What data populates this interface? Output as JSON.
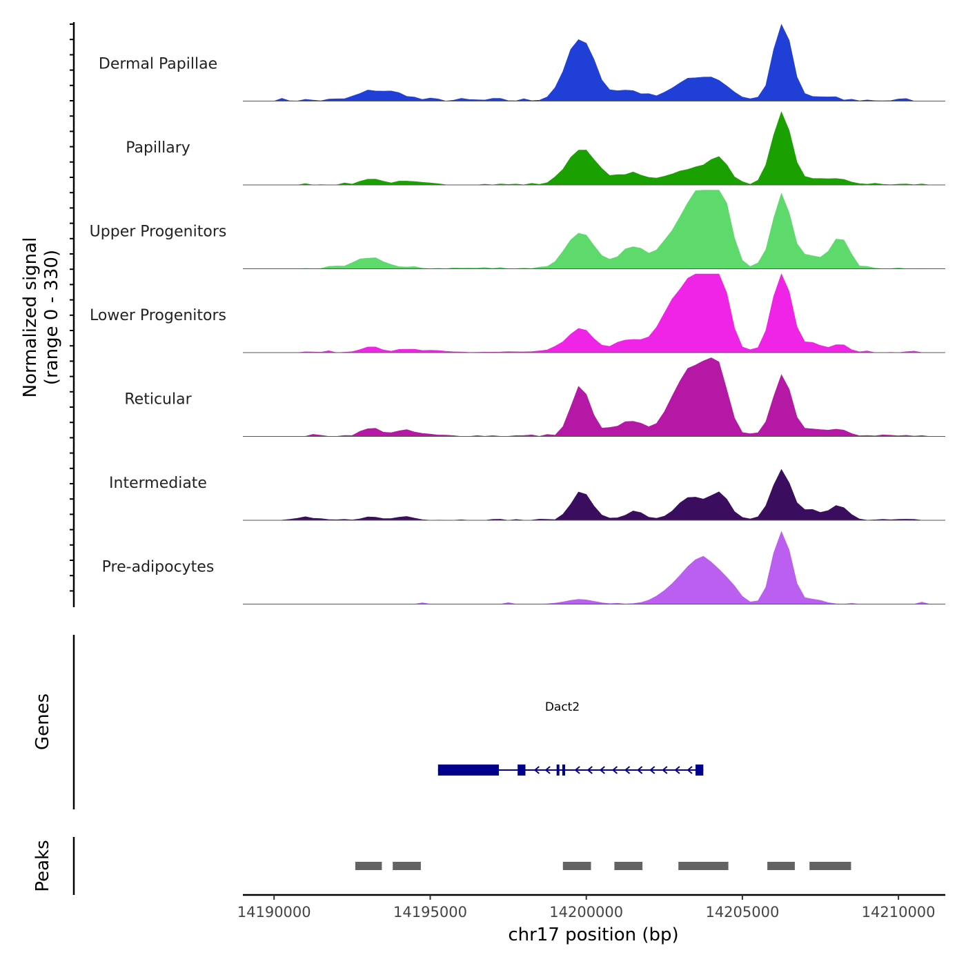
{
  "chart_data": {
    "type": "area",
    "title": "",
    "chromosome": "chr17",
    "xlabel": "chr17 position (bp)",
    "ylabel_line1": "Normalized signal",
    "ylabel_line2": "(range 0 - 330)",
    "xlim": [
      14189000,
      14211500
    ],
    "ylim": [
      0,
      330
    ],
    "x_ticks": [
      14190000,
      14195000,
      14200000,
      14205000,
      14210000
    ],
    "x_tick_labels": [
      "14190000",
      "14195000",
      "14200000",
      "14205000",
      "14210000"
    ],
    "bin_start": 14189000,
    "bin_step": 250,
    "tracks": [
      {
        "name": "Dermal Papillae",
        "color": "#1f3fd6",
        "range": [
          14190000,
          14210500
        ],
        "peaks": [
          [
            14193100,
            35,
            3
          ],
          [
            14193900,
            25,
            3
          ],
          [
            14199800,
            240,
            3
          ],
          [
            14200200,
            20,
            3
          ],
          [
            14201100,
            25,
            2
          ],
          [
            14201550,
            30,
            2
          ],
          [
            14203000,
            30,
            4
          ],
          [
            14203400,
            45,
            4
          ],
          [
            14203900,
            30,
            3
          ],
          [
            14204300,
            45,
            3
          ],
          [
            14206280,
            320,
            2
          ],
          [
            14207400,
            15,
            3
          ],
          [
            14199300,
            10,
            2
          ]
        ],
        "noise": 14
      },
      {
        "name": "Papillary",
        "color": "#1aa000",
        "range": [
          14190800,
          14210800
        ],
        "peaks": [
          [
            14193100,
            25,
            2
          ],
          [
            14194200,
            10,
            3
          ],
          [
            14199800,
            140,
            3
          ],
          [
            14200400,
            20,
            3
          ],
          [
            14201100,
            20,
            2
          ],
          [
            14201550,
            35,
            2
          ],
          [
            14202300,
            15,
            3
          ],
          [
            14203300,
            55,
            4
          ],
          [
            14203900,
            25,
            3
          ],
          [
            14204300,
            85,
            2
          ],
          [
            14206000,
            30,
            2
          ],
          [
            14206280,
            280,
            2
          ],
          [
            14207400,
            20,
            3
          ],
          [
            14208100,
            15,
            3
          ]
        ],
        "noise": 8
      },
      {
        "name": "Upper Progenitors",
        "color": "#5ed96b",
        "range": [
          14190800,
          14210800
        ],
        "peaks": [
          [
            14193100,
            45,
            3
          ],
          [
            14199800,
            150,
            3
          ],
          [
            14201100,
            30,
            2
          ],
          [
            14201550,
            75,
            2
          ],
          [
            14202300,
            25,
            3
          ],
          [
            14203300,
            145,
            4
          ],
          [
            14203700,
            120,
            3
          ],
          [
            14204000,
            120,
            3
          ],
          [
            14204400,
            170,
            2
          ],
          [
            14205850,
            20,
            2
          ],
          [
            14206280,
            300,
            2
          ],
          [
            14207200,
            50,
            2
          ],
          [
            14208100,
            130,
            2
          ],
          [
            14202900,
            40,
            3
          ]
        ],
        "noise": 10
      },
      {
        "name": "Lower Progenitors",
        "color": "#f024e6",
        "range": [
          14190800,
          14210800
        ],
        "peaks": [
          [
            14193100,
            25,
            2
          ],
          [
            14194400,
            10,
            3
          ],
          [
            14199800,
            95,
            3
          ],
          [
            14201100,
            30,
            2
          ],
          [
            14201550,
            35,
            2
          ],
          [
            14202700,
            85,
            3
          ],
          [
            14203300,
            185,
            4
          ],
          [
            14203800,
            175,
            3
          ],
          [
            14204300,
            220,
            2
          ],
          [
            14205900,
            25,
            2
          ],
          [
            14206280,
            330,
            2
          ],
          [
            14207200,
            35,
            2
          ],
          [
            14208100,
            30,
            2
          ],
          [
            14202300,
            15,
            2
          ]
        ],
        "noise": 8
      },
      {
        "name": "Reticular",
        "color": "#b518a5",
        "range": [
          14190800,
          14210800
        ],
        "peaks": [
          [
            14193100,
            30,
            2
          ],
          [
            14194200,
            20,
            3
          ],
          [
            14199800,
            200,
            2
          ],
          [
            14200400,
            20,
            3
          ],
          [
            14201100,
            25,
            2
          ],
          [
            14201550,
            50,
            2
          ],
          [
            14202700,
            50,
            3
          ],
          [
            14203200,
            150,
            3
          ],
          [
            14203600,
            140,
            3
          ],
          [
            14204000,
            130,
            2
          ],
          [
            14204350,
            165,
            2
          ],
          [
            14206280,
            260,
            2
          ],
          [
            14207300,
            30,
            2
          ],
          [
            14208100,
            30,
            2
          ]
        ],
        "noise": 10
      },
      {
        "name": "Intermediate",
        "color": "#3a0d5e",
        "range": [
          14190800,
          14210800
        ],
        "peaks": [
          [
            14190900,
            10,
            2
          ],
          [
            14193100,
            12,
            2
          ],
          [
            14194200,
            15,
            2
          ],
          [
            14199800,
            110,
            2
          ],
          [
            14200200,
            25,
            2
          ],
          [
            14201550,
            35,
            2
          ],
          [
            14203200,
            40,
            3
          ],
          [
            14203500,
            60,
            3
          ],
          [
            14204300,
            100,
            2
          ],
          [
            14205900,
            20,
            2
          ],
          [
            14206280,
            200,
            2
          ],
          [
            14207200,
            40,
            2
          ],
          [
            14208100,
            60,
            2
          ]
        ],
        "noise": 6
      },
      {
        "name": "Pre-adipocytes",
        "color": "#bb5ff0",
        "range": [
          14190800,
          14210800
        ],
        "peaks": [
          [
            14199800,
            20,
            3
          ],
          [
            14202500,
            15,
            3
          ],
          [
            14203300,
            100,
            4
          ],
          [
            14203700,
            80,
            3
          ],
          [
            14204200,
            65,
            3
          ],
          [
            14204600,
            35,
            2
          ],
          [
            14206280,
            290,
            2
          ],
          [
            14206050,
            20,
            2
          ],
          [
            14207300,
            20,
            2
          ]
        ],
        "noise": 10,
        "sparse": true
      }
    ],
    "gene_panel_label": "Genes",
    "gene": {
      "name": "Dact2",
      "strand": "-",
      "color": "#00008b",
      "start": 14195250,
      "end": 14203750,
      "exons": [
        [
          14195250,
          14197200
        ],
        [
          14197800,
          14198050
        ],
        [
          14199050,
          14199100
        ],
        [
          14199230,
          14199320
        ],
        [
          14203500,
          14203750
        ]
      ],
      "intron_arrow_positions": [
        14198400,
        14198750,
        14199700,
        14200100,
        14200500,
        14200900,
        14201300,
        14201700,
        14202100,
        14202500,
        14202900,
        14203300
      ]
    },
    "peaks_panel_label": "Peaks",
    "peak_color": "#636363",
    "peak_regions": [
      [
        14192600,
        14193450
      ],
      [
        14193800,
        14194700
      ],
      [
        14199250,
        14200150
      ],
      [
        14200900,
        14201800
      ],
      [
        14202950,
        14204550
      ],
      [
        14205800,
        14206680
      ],
      [
        14207150,
        14208480
      ]
    ]
  }
}
